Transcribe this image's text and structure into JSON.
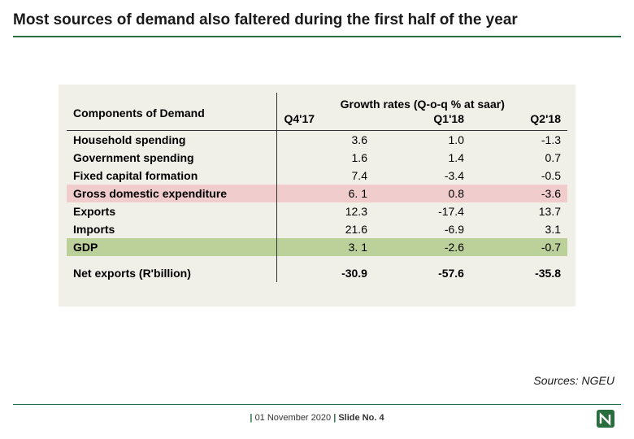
{
  "title": "Most sources of demand also faltered during the first half of the year",
  "accent_color": "#2a6e3f",
  "table": {
    "background": "#f0f0e8",
    "row_highlight_pink": "#f0cccc",
    "row_highlight_green": "#bcd099",
    "header_label": "Components of Demand",
    "header_super": "Growth rates (Q-o-q % at saar)",
    "columns": [
      "Q4'17",
      "Q1'18",
      "Q2'18"
    ],
    "rows": [
      {
        "label": "Household spending",
        "values": [
          "3.6",
          "1.0",
          "-1.3"
        ]
      },
      {
        "label": "Government spending",
        "values": [
          "1.6",
          "1.4",
          "0.7"
        ]
      },
      {
        "label": "Fixed capital formation",
        "values": [
          "7.4",
          "-3.4",
          "-0.5"
        ]
      },
      {
        "label": "Gross domestic expenditure",
        "values": [
          "6. 1",
          "0.8",
          "-3.6"
        ],
        "highlight": "pink"
      },
      {
        "label": "Exports",
        "values": [
          "12.3",
          "-17.4",
          "13.7"
        ]
      },
      {
        "label": "Imports",
        "values": [
          "21.6",
          "-6.9",
          "3.1"
        ]
      },
      {
        "label": "GDP",
        "values": [
          "3. 1",
          "-2.6",
          "-0.7"
        ],
        "highlight": "green"
      }
    ],
    "footer_row": {
      "label": "Net exports (R'billion)",
      "values": [
        "-30.9",
        "-57.6",
        "-35.8"
      ]
    }
  },
  "sources_text": "Sources: NGEU",
  "footer": {
    "date": "01 November 2020",
    "slide_label": "Slide No. 4"
  }
}
